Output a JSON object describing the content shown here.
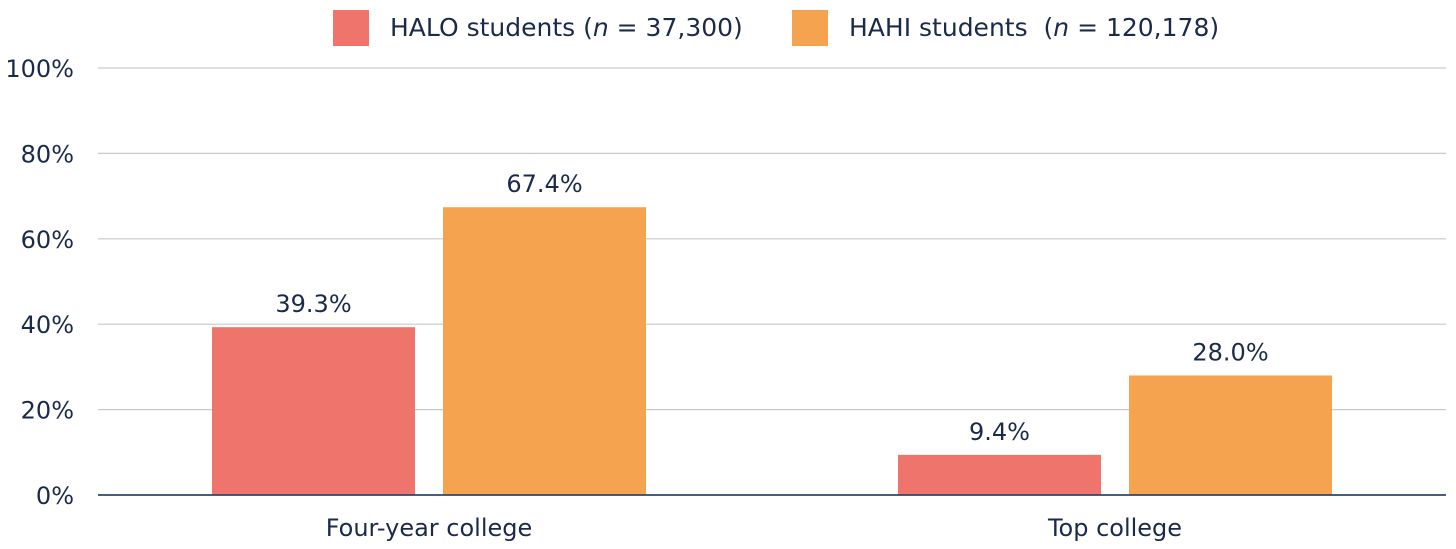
{
  "chart_data": {
    "type": "bar",
    "categories": [
      "Four-year college",
      "Top college"
    ],
    "series": [
      {
        "name": "HALO students (n = 37,300)",
        "legend_prefix": "HALO students (",
        "legend_n": "n",
        "legend_suffix": " = 37,300)",
        "color": "#ef746b",
        "values": [
          39.3,
          9.4
        ],
        "labels": [
          "39.3%",
          "9.4%"
        ]
      },
      {
        "name": "HAHI students (n = 120,178)",
        "legend_prefix": "HAHI students  (",
        "legend_n": "n",
        "legend_suffix": " = 120,178)",
        "color": "#f6a34f",
        "values": [
          67.4,
          28.0
        ],
        "labels": [
          "67.4%",
          "28.0%"
        ]
      }
    ],
    "y_ticks": [
      "0%",
      "20%",
      "40%",
      "60%",
      "80%",
      "100%"
    ],
    "ylim": [
      0,
      100
    ],
    "gridlines": true,
    "legend_position": "top-center",
    "grid_color": "#c9c9c9",
    "axis_color": "#2c4770"
  }
}
